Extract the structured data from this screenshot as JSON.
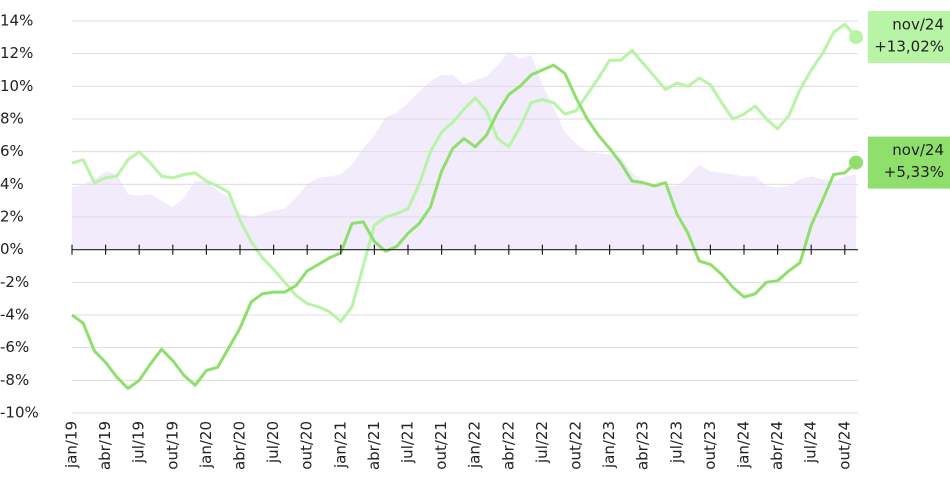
{
  "chart_data": {
    "type": "line",
    "categories": [
      "jan/19",
      null,
      null,
      "abr/19",
      null,
      null,
      "jul/19",
      null,
      null,
      "out/19",
      null,
      null,
      "jan/20",
      null,
      null,
      "abr/20",
      null,
      null,
      "jul/20",
      null,
      null,
      "out/20",
      null,
      null,
      "jan/21",
      null,
      null,
      "abr/21",
      null,
      null,
      "jul/21",
      null,
      null,
      "out/21",
      null,
      null,
      "jan/22",
      null,
      null,
      "abr/22",
      null,
      null,
      "jul/22",
      null,
      null,
      "out/22",
      null,
      null,
      "jan/23",
      null,
      null,
      "abr/23",
      null,
      null,
      "jul/23",
      null,
      null,
      "out/23",
      null,
      null,
      "jan/24",
      null,
      null,
      "abr/24",
      null,
      null,
      "jul/24",
      null,
      null,
      "out/24",
      null
    ],
    "ylim": [
      -10,
      14
    ],
    "yticks": [
      {
        "value": -10,
        "label": "-10%"
      },
      {
        "value": -8,
        "label": "-8%"
      },
      {
        "value": -6,
        "label": "-6%"
      },
      {
        "value": -4,
        "label": "-4%"
      },
      {
        "value": -2,
        "label": "-2%"
      },
      {
        "value": 0,
        "label": "0%"
      },
      {
        "value": 2,
        "label": "2%"
      },
      {
        "value": 4,
        "label": "4%"
      },
      {
        "value": 6,
        "label": "6%"
      },
      {
        "value": 8,
        "label": "8%"
      },
      {
        "value": 10,
        "label": "10%"
      },
      {
        "value": 12,
        "label": "12%"
      },
      {
        "value": 14,
        "label": "14%"
      }
    ],
    "grid": true,
    "series": [
      {
        "style": "area",
        "color": "#f1ebfc",
        "values": [
          3.8,
          4.0,
          4.3,
          4.8,
          4.6,
          3.4,
          3.3,
          3.4,
          3.0,
          2.6,
          3.2,
          4.2,
          4.2,
          3.6,
          3.2,
          2.2,
          2.0,
          2.2,
          2.4,
          2.5,
          3.2,
          4.0,
          4.4,
          4.5,
          4.6,
          5.2,
          6.2,
          7.0,
          8.1,
          8.4,
          9.0,
          9.7,
          10.3,
          10.7,
          10.7,
          10.1,
          10.4,
          10.6,
          11.3,
          12.1,
          11.7,
          11.9,
          10.1,
          8.7,
          7.2,
          6.5,
          6.0,
          5.9,
          5.8,
          5.7,
          4.7,
          4.2,
          4.0,
          3.9,
          3.9,
          4.5,
          5.2,
          4.8,
          4.7,
          4.6,
          4.5,
          4.5,
          3.9,
          3.8,
          3.9,
          4.3,
          4.5,
          4.3,
          4.2,
          4.5,
          4.6
        ]
      },
      {
        "style": "line",
        "color": "#b8f4a6",
        "end_label": "nov/24",
        "end_value_label": "+13,02%",
        "values": [
          5.3,
          5.5,
          4.1,
          4.4,
          4.5,
          5.5,
          6.0,
          5.3,
          4.5,
          4.4,
          4.6,
          4.7,
          4.2,
          3.9,
          3.5,
          1.8,
          0.5,
          -0.5,
          -1.2,
          -2.0,
          -2.8,
          -3.3,
          -3.5,
          -3.8,
          -4.4,
          -3.5,
          -1.0,
          1.5,
          2.0,
          2.2,
          2.5,
          4.0,
          6.0,
          7.2,
          7.8,
          8.6,
          9.3,
          8.5,
          6.8,
          6.3,
          7.5,
          9.0,
          9.2,
          9.0,
          8.3,
          8.5,
          9.5,
          10.5,
          11.6,
          11.6,
          12.2,
          11.4,
          10.6,
          9.8,
          10.2,
          10.0,
          10.5,
          10.1,
          9.0,
          8.0,
          8.3,
          8.8,
          8.0,
          7.4,
          8.2,
          9.8,
          11.0,
          12.0,
          13.3,
          13.8,
          13.02
        ]
      },
      {
        "style": "line",
        "color": "#8fdf6c",
        "end_label": "nov/24",
        "end_value_label": "+5,33%",
        "values": [
          -4.0,
          -4.5,
          -6.2,
          -6.9,
          -7.8,
          -8.5,
          -8.0,
          -7.0,
          -6.1,
          -6.8,
          -7.7,
          -8.3,
          -7.4,
          -7.2,
          -6.0,
          -4.8,
          -3.2,
          -2.7,
          -2.6,
          -2.6,
          -2.2,
          -1.3,
          -0.9,
          -0.5,
          -0.2,
          1.6,
          1.7,
          0.5,
          -0.1,
          0.2,
          1.0,
          1.6,
          2.6,
          4.8,
          6.2,
          6.8,
          6.3,
          7.0,
          8.4,
          9.5,
          10.0,
          10.7,
          11.0,
          11.3,
          10.8,
          9.3,
          8.0,
          7.0,
          6.2,
          5.3,
          4.2,
          4.1,
          3.9,
          4.1,
          2.2,
          1.0,
          -0.7,
          -0.9,
          -1.5,
          -2.3,
          -2.9,
          -2.7,
          -2.0,
          -1.9,
          -1.3,
          -0.8,
          1.5,
          3.0,
          4.6,
          4.7,
          5.33
        ]
      }
    ]
  }
}
